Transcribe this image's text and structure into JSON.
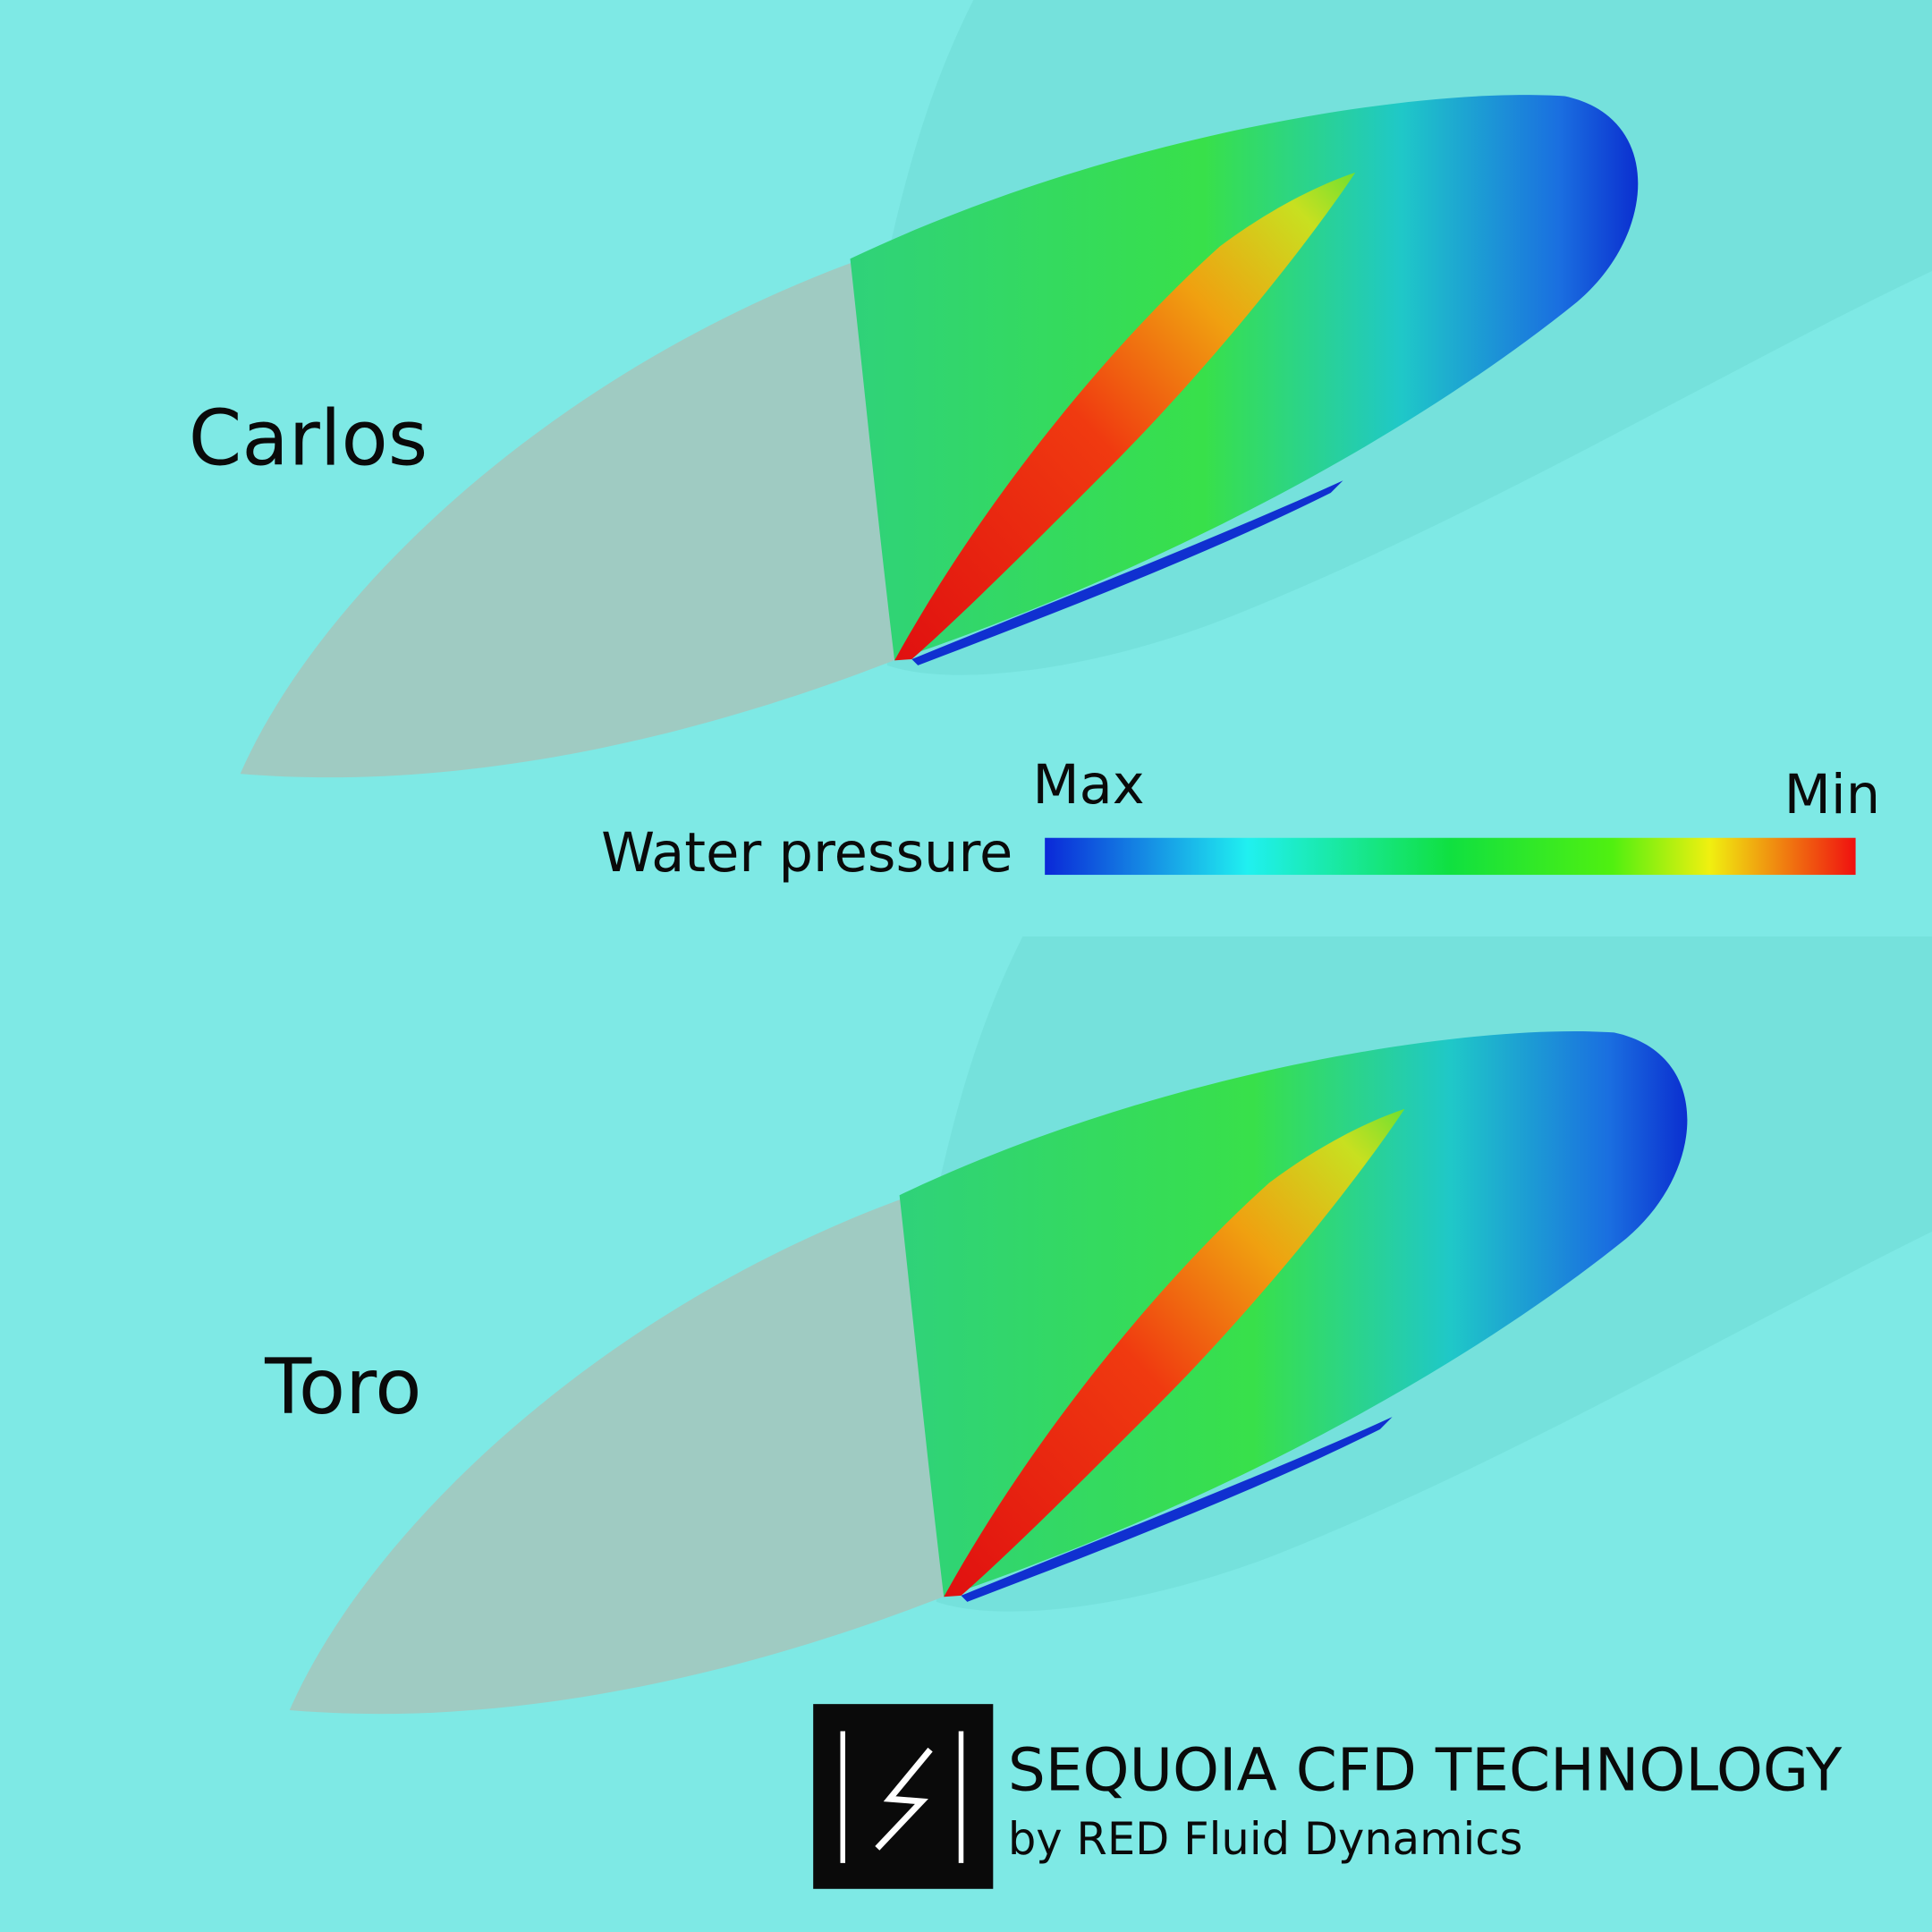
{
  "labels": {
    "top_board": "Carlos",
    "bottom_board": "Toro"
  },
  "legend": {
    "title": "Water pressure",
    "left_label": "Max",
    "right_label": "Min"
  },
  "logo": {
    "title": "SEQUOIA CFD TECHNOLOGY",
    "subtitle": "by RED Fluid Dynamics"
  }
}
